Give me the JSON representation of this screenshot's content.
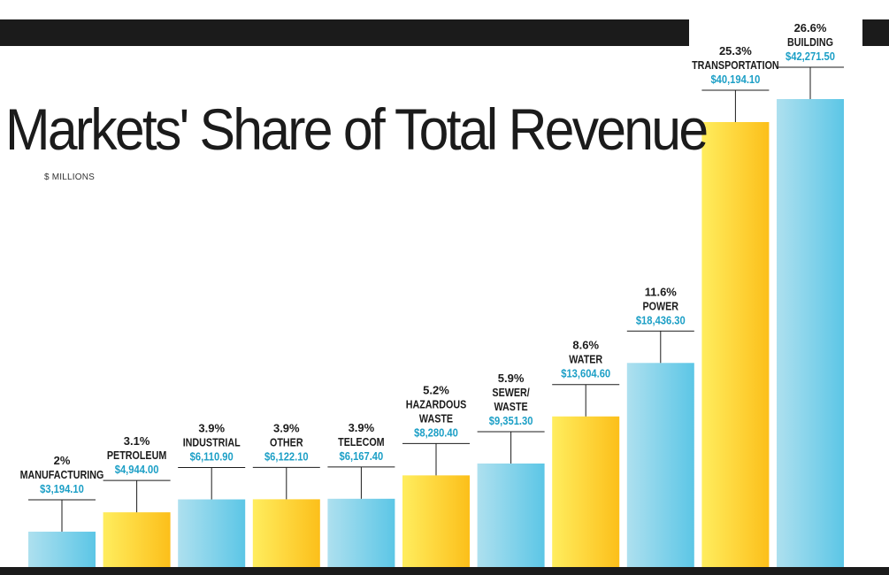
{
  "chart_data": {
    "type": "bar",
    "title": "Markets' Share of Total Revenue",
    "unit_label": "$ MILLIONS",
    "categories": [
      [
        "MANUFACTURING"
      ],
      [
        "PETROLEUM"
      ],
      [
        "INDUSTRIAL"
      ],
      [
        "OTHER"
      ],
      [
        "TELECOM"
      ],
      [
        "HAZARDOUS",
        "WASTE"
      ],
      [
        "SEWER/",
        "WASTE"
      ],
      [
        "WATER"
      ],
      [
        "POWER"
      ],
      [
        "TRANSPORTATION"
      ],
      [
        "BUILDING"
      ]
    ],
    "values": [
      3194.1,
      4944.0,
      6110.9,
      6122.1,
      6167.4,
      8280.4,
      9351.3,
      13604.6,
      18436.3,
      40194.1,
      42271.5
    ],
    "value_labels": [
      "$3,194.10",
      "$4,944.00",
      "$6,110.90",
      "$6,122.10",
      "$6,167.40",
      "$8,280.40",
      "$9,351.30",
      "$13,604.60",
      "$18,436.30",
      "$40,194.10",
      "$42,271.50"
    ],
    "shares": [
      "2%",
      "3.1%",
      "3.9%",
      "3.9%",
      "3.9%",
      "5.2%",
      "5.9%",
      "8.6%",
      "11.6%",
      "25.3%",
      "26.6%"
    ],
    "bar_colors": [
      "blue",
      "yellow",
      "blue",
      "yellow",
      "blue",
      "yellow",
      "blue",
      "yellow",
      "blue",
      "yellow",
      "blue"
    ],
    "colors": {
      "blue_light": "#aee0ef",
      "blue_dark": "#5cc6e6",
      "yellow_light": "#ffed5e",
      "yellow_dark": "#fcbf1a",
      "value_text": "#1c9fc6",
      "dark": "#1b1b1b"
    },
    "ylim": [
      0,
      42271.5
    ],
    "grid": false,
    "legend": "none"
  }
}
